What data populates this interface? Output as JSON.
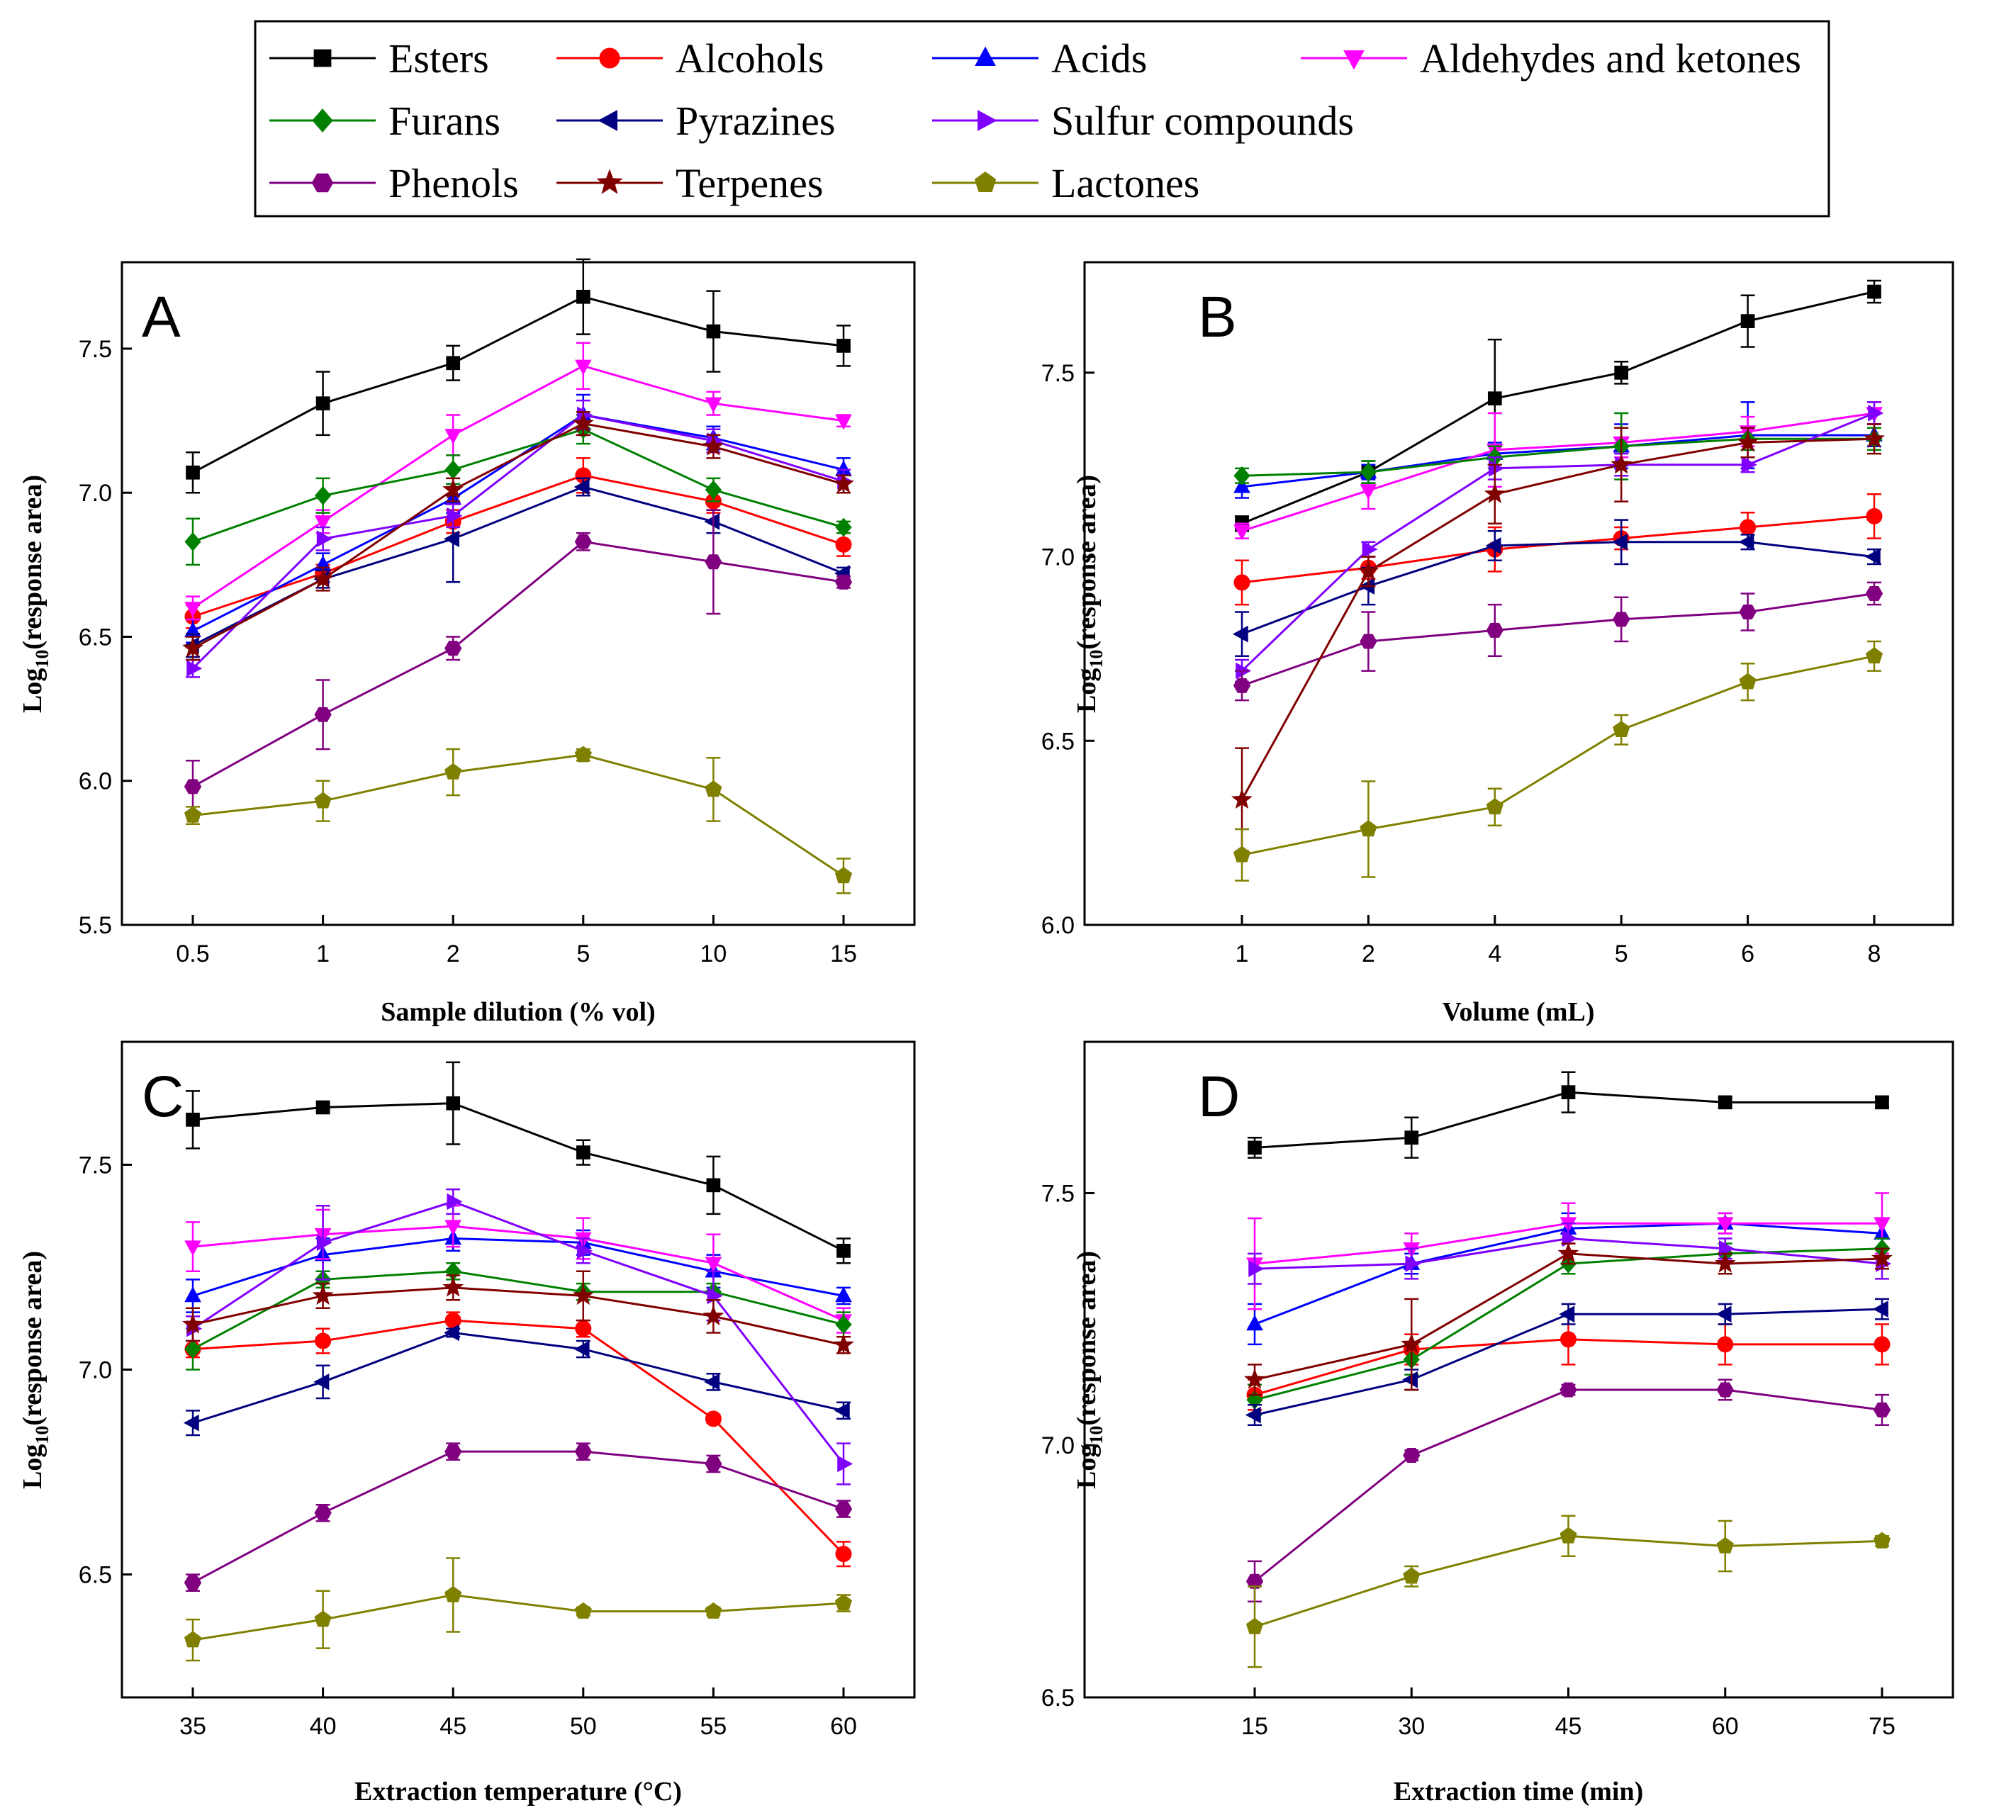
{
  "legend": [
    {
      "name": "Esters",
      "color": "#000000",
      "marker": "square"
    },
    {
      "name": "Alcohols",
      "color": "#ff0000",
      "marker": "circle"
    },
    {
      "name": "Acids",
      "color": "#0000ff",
      "marker": "triangle-up"
    },
    {
      "name": "Aldehydes and ketones",
      "color": "#ff00ff",
      "marker": "triangle-down"
    },
    {
      "name": "Furans",
      "color": "#008000",
      "marker": "diamond"
    },
    {
      "name": "Pyrazines",
      "color": "#000080",
      "marker": "triangle-left"
    },
    {
      "name": "Sulfur compounds",
      "color": "#8000ff",
      "marker": "triangle-right"
    },
    {
      "name": "Phenols",
      "color": "#800080",
      "marker": "hexagon"
    },
    {
      "name": "Terpenes",
      "color": "#800000",
      "marker": "star"
    },
    {
      "name": "Lactones",
      "color": "#808000",
      "marker": "pentagon"
    }
  ],
  "chart_data": [
    {
      "type": "line",
      "panel": "A",
      "xlabel": "Sample dilution (% vol)",
      "ylabel": "Log10(response area)",
      "categories": [
        "0.5",
        "1",
        "2",
        "5",
        "10",
        "15"
      ],
      "ylim": [
        5.5,
        7.8
      ],
      "yticks": [
        "5.5",
        "6.0",
        "6.5",
        "7.0",
        "7.5"
      ],
      "series": [
        {
          "name": "Esters",
          "values": [
            7.07,
            7.31,
            7.45,
            7.68,
            7.56,
            7.51
          ],
          "err": [
            0.07,
            0.11,
            0.06,
            0.13,
            0.14,
            0.07
          ]
        },
        {
          "name": "Alcohols",
          "values": [
            6.57,
            6.72,
            6.9,
            7.06,
            6.97,
            6.82
          ],
          "err": [
            0.04,
            0.03,
            0.04,
            0.06,
            0.04,
            0.04
          ]
        },
        {
          "name": "Acids",
          "values": [
            6.52,
            6.75,
            6.98,
            7.27,
            7.19,
            7.08
          ],
          "err": [
            0.04,
            0.04,
            0.05,
            0.07,
            0.04,
            0.04
          ]
        },
        {
          "name": "Aldehydes and ketones",
          "values": [
            6.6,
            6.9,
            7.2,
            7.44,
            7.31,
            7.25
          ],
          "err": [
            0.04,
            0.04,
            0.07,
            0.08,
            0.04,
            0.02
          ]
        },
        {
          "name": "Furans",
          "values": [
            6.83,
            6.99,
            7.08,
            7.22,
            7.01,
            6.88
          ],
          "err": [
            0.08,
            0.06,
            0.05,
            0.05,
            0.04,
            0.02
          ]
        },
        {
          "name": "Pyrazines",
          "values": [
            6.47,
            6.7,
            6.84,
            7.02,
            6.9,
            6.72
          ],
          "err": [
            0.04,
            0.03,
            0.15,
            0.03,
            0.04,
            0.02
          ]
        },
        {
          "name": "Sulfur compounds",
          "values": [
            6.39,
            6.84,
            6.92,
            7.27,
            7.18,
            7.04
          ],
          "err": [
            0.03,
            0.04,
            0.04,
            0.05,
            0.04,
            0.04
          ]
        },
        {
          "name": "Phenols",
          "values": [
            5.98,
            6.23,
            6.46,
            6.83,
            6.76,
            6.69
          ],
          "err": [
            0.09,
            0.12,
            0.04,
            0.03,
            0.18,
            0.02
          ]
        },
        {
          "name": "Terpenes",
          "values": [
            6.46,
            6.7,
            7.01,
            7.24,
            7.16,
            7.03
          ],
          "err": [
            0.04,
            0.04,
            0.04,
            0.04,
            0.04,
            0.03
          ]
        },
        {
          "name": "Lactones",
          "values": [
            5.88,
            5.93,
            6.03,
            6.09,
            5.97,
            5.67
          ],
          "err": [
            0.03,
            0.07,
            0.08,
            0.02,
            0.11,
            0.06
          ]
        }
      ]
    },
    {
      "type": "line",
      "panel": "B",
      "xlabel": "Volume (mL)",
      "ylabel": "Log10(response area)",
      "categories": [
        "1",
        "2",
        "4",
        "5",
        "6",
        "8"
      ],
      "ylim": [
        6.0,
        7.8
      ],
      "yticks": [
        "6.0",
        "6.5",
        "7.0",
        "7.5"
      ],
      "series": [
        {
          "name": "Esters",
          "values": [
            7.09,
            7.23,
            7.43,
            7.5,
            7.64,
            7.72
          ],
          "err": [
            0.02,
            0.03,
            0.16,
            0.03,
            0.07,
            0.03
          ]
        },
        {
          "name": "Alcohols",
          "values": [
            6.93,
            6.97,
            7.02,
            7.05,
            7.08,
            7.11
          ],
          "err": [
            0.06,
            0.03,
            0.06,
            0.03,
            0.04,
            0.06
          ]
        },
        {
          "name": "Acids",
          "values": [
            7.19,
            7.23,
            7.28,
            7.3,
            7.33,
            7.33
          ],
          "err": [
            0.03,
            0.02,
            0.03,
            0.06,
            0.09,
            0.03
          ]
        },
        {
          "name": "Aldehydes and ketones",
          "values": [
            7.07,
            7.18,
            7.29,
            7.31,
            7.34,
            7.39
          ],
          "err": [
            0.02,
            0.05,
            0.1,
            0.04,
            0.04,
            0.03
          ]
        },
        {
          "name": "Furans",
          "values": [
            7.22,
            7.23,
            7.27,
            7.3,
            7.32,
            7.32
          ],
          "err": [
            0.02,
            0.03,
            0.03,
            0.09,
            0.03,
            0.03
          ]
        },
        {
          "name": "Pyrazines",
          "values": [
            6.79,
            6.92,
            7.03,
            7.04,
            7.04,
            7.0
          ],
          "err": [
            0.06,
            0.05,
            0.04,
            0.06,
            0.02,
            0.02
          ]
        },
        {
          "name": "Sulfur compounds",
          "values": [
            6.69,
            7.02,
            7.24,
            7.25,
            7.25,
            7.39
          ],
          "err": [
            0.03,
            0.02,
            0.03,
            0.03,
            0.02,
            0.03
          ]
        },
        {
          "name": "Phenols",
          "values": [
            6.65,
            6.77,
            6.8,
            6.83,
            6.85,
            6.9
          ],
          "err": [
            0.04,
            0.08,
            0.07,
            0.06,
            0.05,
            0.03
          ]
        },
        {
          "name": "Terpenes",
          "values": [
            6.34,
            6.96,
            7.17,
            7.25,
            7.31,
            7.32
          ],
          "err": [
            0.14,
            0.04,
            0.08,
            0.1,
            0.04,
            0.04
          ]
        },
        {
          "name": "Lactones",
          "values": [
            6.19,
            6.26,
            6.32,
            6.53,
            6.66,
            6.73
          ],
          "err": [
            0.07,
            0.13,
            0.05,
            0.04,
            0.05,
            0.04
          ]
        }
      ]
    },
    {
      "type": "line",
      "panel": "C",
      "xlabel": "Extraction temperature (°C)",
      "ylabel": "Log10(response area)",
      "categories": [
        "35",
        "40",
        "45",
        "50",
        "55",
        "60"
      ],
      "ylim": [
        6.2,
        7.8
      ],
      "yticks": [
        "6.5",
        "7.0",
        "7.5"
      ],
      "series": [
        {
          "name": "Esters",
          "values": [
            7.61,
            7.64,
            7.65,
            7.53,
            7.45,
            7.29
          ],
          "err": [
            0.07,
            0.01,
            0.1,
            0.03,
            0.07,
            0.03
          ]
        },
        {
          "name": "Alcohols",
          "values": [
            7.05,
            7.07,
            7.12,
            7.1,
            6.88,
            6.55
          ],
          "err": [
            0.02,
            0.03,
            0.02,
            0.02,
            0.01,
            0.03
          ]
        },
        {
          "name": "Acids",
          "values": [
            7.18,
            7.28,
            7.32,
            7.31,
            7.24,
            7.18
          ],
          "err": [
            0.04,
            0.04,
            0.03,
            0.03,
            0.04,
            0.02
          ]
        },
        {
          "name": "Aldehydes and ketones",
          "values": [
            7.3,
            7.33,
            7.35,
            7.32,
            7.26,
            7.12
          ],
          "err": [
            0.06,
            0.06,
            0.05,
            0.05,
            0.07,
            0.03
          ]
        },
        {
          "name": "Furans",
          "values": [
            7.05,
            7.22,
            7.24,
            7.19,
            7.19,
            7.11
          ],
          "err": [
            0.05,
            0.02,
            0.02,
            0.02,
            0.02,
            0.03
          ]
        },
        {
          "name": "Pyrazines",
          "values": [
            6.87,
            6.97,
            7.09,
            7.05,
            6.97,
            6.9
          ],
          "err": [
            0.03,
            0.04,
            0.01,
            0.02,
            0.02,
            0.02
          ]
        },
        {
          "name": "Sulfur compounds",
          "values": [
            7.1,
            7.31,
            7.41,
            7.29,
            7.18,
            6.77
          ],
          "err": [
            0.03,
            0.09,
            0.03,
            0.03,
            0.06,
            0.05
          ]
        },
        {
          "name": "Phenols",
          "values": [
            6.48,
            6.65,
            6.8,
            6.8,
            6.77,
            6.66
          ],
          "err": [
            0.02,
            0.02,
            0.02,
            0.02,
            0.02,
            0.02
          ]
        },
        {
          "name": "Terpenes",
          "values": [
            7.11,
            7.18,
            7.2,
            7.18,
            7.13,
            7.06
          ],
          "err": [
            0.04,
            0.03,
            0.03,
            0.06,
            0.04,
            0.02
          ]
        },
        {
          "name": "Lactones",
          "values": [
            6.34,
            6.39,
            6.45,
            6.41,
            6.41,
            6.43
          ],
          "err": [
            0.05,
            0.07,
            0.09,
            0.01,
            0.01,
            0.02
          ]
        }
      ]
    },
    {
      "type": "line",
      "panel": "D",
      "xlabel": "Extraction time (min)",
      "ylabel": "Log10(response area)",
      "categories": [
        "15",
        "30",
        "45",
        "60",
        "75"
      ],
      "ylim": [
        6.5,
        7.8
      ],
      "yticks": [
        "6.5",
        "7.0",
        "7.5"
      ],
      "series": [
        {
          "name": "Esters",
          "values": [
            7.59,
            7.61,
            7.7,
            7.68,
            7.68
          ],
          "err": [
            0.02,
            0.04,
            0.04,
            0.01,
            0.01
          ]
        },
        {
          "name": "Alcohols",
          "values": [
            7.1,
            7.19,
            7.21,
            7.2,
            7.2
          ],
          "err": [
            0.03,
            0.03,
            0.05,
            0.04,
            0.04
          ]
        },
        {
          "name": "Acids",
          "values": [
            7.24,
            7.36,
            7.43,
            7.44,
            7.42
          ],
          "err": [
            0.04,
            0.02,
            0.03,
            0.02,
            0.03
          ]
        },
        {
          "name": "Aldehydes and ketones",
          "values": [
            7.36,
            7.39,
            7.44,
            7.44,
            7.44
          ],
          "err": [
            0.09,
            0.03,
            0.04,
            0.02,
            0.06
          ]
        },
        {
          "name": "Furans",
          "values": [
            7.09,
            7.17,
            7.36,
            7.38,
            7.39
          ],
          "err": [
            0.03,
            0.03,
            0.02,
            0.02,
            0.02
          ]
        },
        {
          "name": "Pyrazines",
          "values": [
            7.06,
            7.13,
            7.26,
            7.26,
            7.27
          ],
          "err": [
            0.02,
            0.02,
            0.02,
            0.02,
            0.02
          ]
        },
        {
          "name": "Sulfur compounds",
          "values": [
            7.35,
            7.36,
            7.41,
            7.39,
            7.36
          ],
          "err": [
            0.03,
            0.03,
            0.03,
            0.02,
            0.03
          ]
        },
        {
          "name": "Phenols",
          "values": [
            6.73,
            6.98,
            7.11,
            7.11,
            7.07
          ],
          "err": [
            0.04,
            0.01,
            0.01,
            0.02,
            0.03
          ]
        },
        {
          "name": "Terpenes",
          "values": [
            7.13,
            7.2,
            7.38,
            7.36,
            7.37
          ],
          "err": [
            0.03,
            0.09,
            0.02,
            0.02,
            0.02
          ]
        },
        {
          "name": "Lactones",
          "values": [
            6.64,
            6.74,
            6.82,
            6.8,
            6.81
          ],
          "err": [
            0.08,
            0.02,
            0.04,
            0.05,
            0.01
          ]
        }
      ]
    }
  ]
}
